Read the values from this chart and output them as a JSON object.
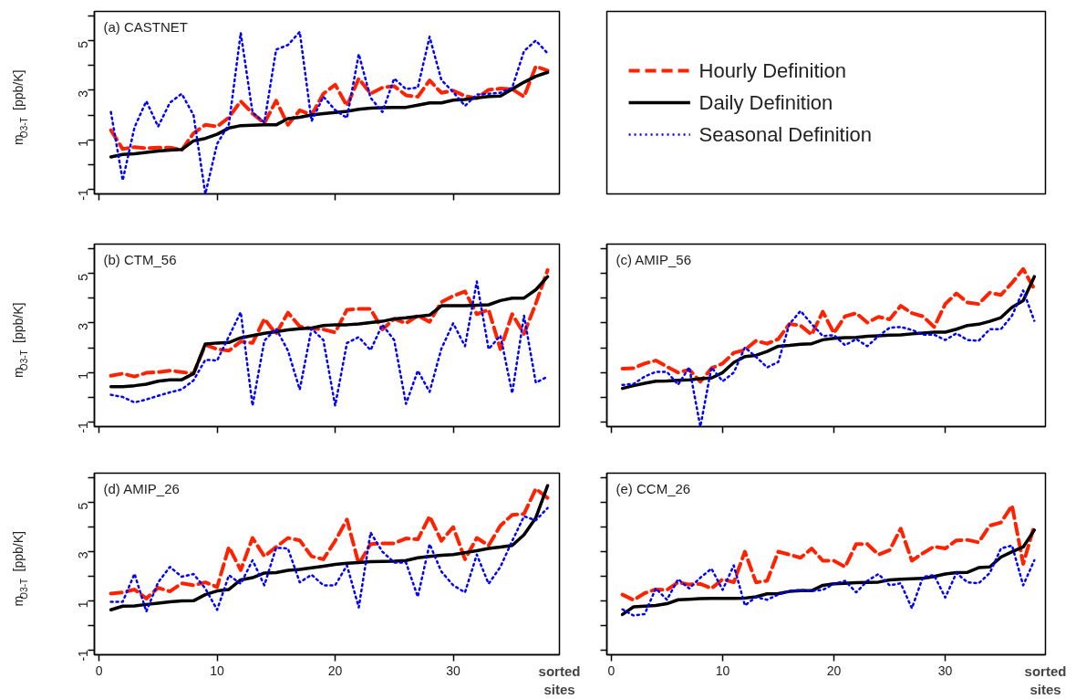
{
  "chart_data": [
    {
      "type": "line",
      "title": "(a) CASTNET",
      "ylabel": "m$_{O3-T}$ [ppb/K]",
      "xlim": [
        -0.4,
        39.0
      ],
      "ylim": [
        -1.2,
        6.2
      ],
      "xticks": [
        0,
        10,
        20,
        30
      ],
      "yticks": [
        -1,
        {
          "value": 0,
          "label": null
        },
        1,
        {
          "value": 2,
          "label": null
        },
        3,
        {
          "value": 4,
          "label": null
        },
        5,
        {
          "value": 6,
          "label": null
        }
      ],
      "tick_labels": "y",
      "grid": false,
      "legend": "right",
      "marker": "none",
      "x": [
        1,
        2,
        3,
        4,
        5,
        6,
        7,
        8,
        9,
        10,
        11,
        12,
        13,
        14,
        15,
        16,
        17,
        18,
        19,
        20,
        21,
        22,
        23,
        24,
        25,
        26,
        27,
        28,
        29,
        30,
        31,
        32,
        33,
        34,
        35,
        36,
        37,
        38
      ],
      "series": [
        {
          "name": "Hourly Definition",
          "color": "#ff2200",
          "line_style": "dashed",
          "values": [
            1.38,
            0.62,
            0.7,
            0.65,
            0.68,
            0.68,
            0.58,
            1.26,
            1.6,
            1.53,
            1.9,
            2.56,
            2.06,
            1.67,
            2.58,
            1.6,
            2.19,
            2.0,
            2.86,
            3.23,
            2.37,
            3.48,
            2.86,
            3.11,
            3.17,
            2.8,
            2.74,
            3.4,
            2.9,
            2.99,
            2.77,
            2.68,
            3.02,
            3.07,
            3.05,
            2.74,
            3.97,
            3.8
          ]
        },
        {
          "name": "Daily Definition",
          "color": "#000000",
          "line_style": "solid",
          "values": [
            0.3,
            0.4,
            0.43,
            0.48,
            0.54,
            0.58,
            0.6,
            0.95,
            1.05,
            1.22,
            1.47,
            1.57,
            1.58,
            1.6,
            1.6,
            1.85,
            1.91,
            2.0,
            2.06,
            2.1,
            2.15,
            2.23,
            2.28,
            2.3,
            2.31,
            2.31,
            2.4,
            2.49,
            2.49,
            2.6,
            2.63,
            2.69,
            2.75,
            2.77,
            3.05,
            3.33,
            3.57,
            3.73
          ]
        },
        {
          "name": "Seasonal Definition",
          "color": "#0000ff",
          "line_style": "dotted",
          "values": [
            2.12,
            -0.65,
            1.5,
            2.56,
            1.53,
            2.5,
            2.86,
            2.0,
            -1.2,
            0.83,
            1.63,
            5.33,
            2.1,
            1.7,
            4.65,
            4.84,
            5.37,
            1.75,
            2.74,
            2.2,
            1.88,
            4.47,
            2.7,
            2.12,
            3.48,
            3.05,
            3.11,
            5.17,
            3.42,
            2.93,
            2.37,
            2.83,
            2.86,
            2.9,
            3.11,
            4.59,
            5.02,
            4.5
          ]
        }
      ]
    },
    {
      "type": "line",
      "title": "(b) CTM_56",
      "ylabel": "m$_{O3-T}$ [ppb/K]",
      "xlim": [
        -0.4,
        39.0
      ],
      "ylim": [
        -1.2,
        6.2
      ],
      "xticks": [
        0,
        10,
        20,
        30
      ],
      "yticks": [
        -1,
        {
          "value": 0,
          "label": null
        },
        1,
        {
          "value": 2,
          "label": null
        },
        3,
        {
          "value": 4,
          "label": null
        },
        5,
        {
          "value": 6,
          "label": null
        }
      ],
      "tick_labels": "y",
      "grid": false,
      "marker": "none",
      "x": [
        1,
        2,
        3,
        4,
        5,
        6,
        7,
        8,
        9,
        10,
        11,
        12,
        13,
        14,
        15,
        16,
        17,
        18,
        19,
        20,
        21,
        22,
        23,
        24,
        25,
        26,
        27,
        28,
        29,
        30,
        31,
        32,
        33,
        34,
        35,
        36,
        37,
        38
      ],
      "series": [
        {
          "color": "#ff2200",
          "line_style": "dashed",
          "values": [
            0.86,
            0.95,
            0.83,
            0.98,
            1.01,
            1.07,
            1.01,
            0.95,
            2.12,
            1.94,
            1.88,
            2.25,
            2.19,
            3.17,
            2.56,
            3.42,
            2.86,
            2.78,
            2.74,
            2.62,
            3.54,
            3.57,
            3.57,
            2.74,
            3.17,
            2.99,
            3.3,
            3.05,
            3.85,
            4.1,
            4.28,
            3.36,
            3.54,
            1.94,
            3.36,
            2.56,
            3.79,
            5.15
          ]
        },
        {
          "color": "#000000",
          "line_style": "solid",
          "values": [
            0.42,
            0.42,
            0.46,
            0.52,
            0.64,
            0.7,
            0.7,
            0.95,
            2.15,
            2.19,
            2.21,
            2.4,
            2.49,
            2.58,
            2.65,
            2.72,
            2.77,
            2.8,
            2.9,
            2.93,
            2.93,
            2.96,
            3.02,
            3.07,
            3.17,
            3.21,
            3.27,
            3.32,
            3.7,
            3.7,
            3.7,
            3.72,
            3.74,
            3.91,
            4.01,
            4.01,
            4.35,
            4.88
          ]
        },
        {
          "color": "#0000ff",
          "line_style": "dotted",
          "values": [
            0.09,
            0,
            -0.22,
            -0.1,
            0.05,
            0.19,
            0.31,
            0.67,
            1.51,
            1.48,
            2.46,
            3.44,
            -0.35,
            2.28,
            2.77,
            1.88,
            0.3,
            2.77,
            2.31,
            -0.35,
            2.19,
            2.43,
            1.9,
            2.93,
            2.31,
            -0.28,
            1.07,
            0.21,
            1.96,
            2.99,
            2.06,
            4.68,
            1.94,
            2.49,
            0.15,
            3.3,
            0.58,
            0.83
          ]
        }
      ]
    },
    {
      "type": "line",
      "title": "(c) AMIP_56",
      "xlim": [
        -0.4,
        39.0
      ],
      "ylim": [
        -1.2,
        6.2
      ],
      "xticks": [
        0,
        10,
        20,
        30
      ],
      "yticks": [
        -1,
        {
          "value": 0,
          "label": null
        },
        1,
        {
          "value": 2,
          "label": null
        },
        3,
        {
          "value": 4,
          "label": null
        },
        5,
        {
          "value": 6,
          "label": null
        }
      ],
      "tick_labels": false,
      "grid": false,
      "marker": "none",
      "x": [
        1,
        2,
        3,
        4,
        5,
        6,
        7,
        8,
        9,
        10,
        11,
        12,
        13,
        14,
        15,
        16,
        17,
        18,
        19,
        20,
        21,
        22,
        23,
        24,
        25,
        26,
        27,
        28,
        29,
        30,
        31,
        32,
        33,
        34,
        35,
        36,
        37,
        38
      ],
      "series": [
        {
          "color": "#ff2200",
          "line_style": "dashed",
          "values": [
            1.15,
            1.17,
            1.36,
            1.48,
            1.23,
            0.99,
            1.11,
            0.62,
            1.17,
            1.36,
            1.79,
            1.91,
            2.28,
            2.16,
            2.35,
            2.96,
            2.9,
            2.53,
            3.46,
            2.59,
            3.27,
            3.4,
            3.02,
            3.25,
            3.15,
            3.7,
            3.4,
            3.27,
            2.84,
            3.77,
            4.2,
            3.83,
            3.77,
            4.23,
            4.14,
            4.63,
            5.19,
            4.38
          ]
        },
        {
          "color": "#000000",
          "line_style": "solid",
          "values": [
            0.35,
            0.46,
            0.56,
            0.64,
            0.65,
            0.68,
            0.7,
            0.74,
            0.77,
            0.99,
            1.4,
            1.64,
            1.69,
            1.85,
            2.06,
            2.09,
            2.14,
            2.16,
            2.32,
            2.38,
            2.41,
            2.42,
            2.46,
            2.48,
            2.51,
            2.52,
            2.56,
            2.59,
            2.63,
            2.63,
            2.75,
            2.9,
            2.95,
            3.07,
            3.22,
            3.64,
            3.91,
            4.88
          ]
        },
        {
          "color": "#0000ff",
          "line_style": "dotted",
          "values": [
            0.49,
            0.53,
            0.83,
            1.02,
            1.02,
            0.5,
            1.2,
            -1.2,
            1.2,
            0.64,
            0.99,
            2.01,
            1.63,
            1.2,
            1.42,
            2.96,
            3.49,
            2.96,
            2.47,
            2.51,
            2.1,
            2.35,
            2.06,
            2.47,
            2.81,
            2.84,
            2.72,
            2.53,
            2.53,
            2.31,
            2.58,
            2.31,
            2.28,
            2.75,
            2.75,
            3.3,
            4.32,
            3.09
          ]
        }
      ]
    },
    {
      "type": "line",
      "title": "(d) AMIP_26",
      "ylabel": "m$_{O3-T}$ [ppb/K]",
      "xlabel": "sorted sites",
      "xlim": [
        -0.4,
        39.0
      ],
      "ylim": [
        -1.2,
        6.2
      ],
      "xticks": [
        0,
        10,
        20,
        30
      ],
      "yticks": [
        -1,
        {
          "value": 0,
          "label": null
        },
        1,
        {
          "value": 2,
          "label": null
        },
        3,
        {
          "value": 4,
          "label": null
        },
        5,
        {
          "value": 6,
          "label": null
        }
      ],
      "grid": false,
      "marker": "none",
      "x": [
        1,
        2,
        3,
        4,
        5,
        6,
        7,
        8,
        9,
        10,
        11,
        12,
        13,
        14,
        15,
        16,
        17,
        18,
        19,
        20,
        21,
        22,
        23,
        24,
        25,
        26,
        27,
        28,
        29,
        30,
        31,
        32,
        33,
        34,
        35,
        36,
        37,
        38
      ],
      "series": [
        {
          "color": "#ff2200",
          "line_style": "dashed",
          "values": [
            1.29,
            1.34,
            1.46,
            1.09,
            1.53,
            1.38,
            1.71,
            1.63,
            1.75,
            1.56,
            3.19,
            2.25,
            3.56,
            2.81,
            3.19,
            3.56,
            3.46,
            2.81,
            2.69,
            3.44,
            4.31,
            2.5,
            3.31,
            3.34,
            3.34,
            3.54,
            3.5,
            4.44,
            3.44,
            4.0,
            2.69,
            3.56,
            3.25,
            4.06,
            4.5,
            4.54,
            5.56,
            5.19
          ]
        },
        {
          "color": "#000000",
          "line_style": "solid",
          "values": [
            0.63,
            0.78,
            0.79,
            0.85,
            0.9,
            0.96,
            0.99,
            1.0,
            1.25,
            1.4,
            1.46,
            1.85,
            1.94,
            2.13,
            2.15,
            2.24,
            2.28,
            2.34,
            2.41,
            2.48,
            2.53,
            2.56,
            2.59,
            2.6,
            2.61,
            2.64,
            2.75,
            2.81,
            2.85,
            2.88,
            2.96,
            3.04,
            3.13,
            3.19,
            3.25,
            3.69,
            4.38,
            5.69
          ]
        },
        {
          "color": "#0000ff",
          "line_style": "dotted",
          "values": [
            0.96,
            0.96,
            2.1,
            0.56,
            1.75,
            2.38,
            1.98,
            2.09,
            1.5,
            0.63,
            2.04,
            1.69,
            2.65,
            1.63,
            3.16,
            3.13,
            1.75,
            2.06,
            1.63,
            1.63,
            2.44,
            0.73,
            3.78,
            3.0,
            2.56,
            2.56,
            1.16,
            3.31,
            2.19,
            1.63,
            1.34,
            2.88,
            1.69,
            2.38,
            3.44,
            4.44,
            4.28,
            4.78
          ]
        }
      ]
    },
    {
      "type": "line",
      "title": "(e) CCM_26",
      "xlabel": "sorted sites",
      "xlim": [
        -0.4,
        39.0
      ],
      "ylim": [
        -1.2,
        6.2
      ],
      "xticks": [
        0,
        10,
        20,
        30
      ],
      "yticks": [
        -1,
        {
          "value": 0,
          "label": null
        },
        1,
        {
          "value": 2,
          "label": null
        },
        3,
        {
          "value": 4,
          "label": null
        },
        5,
        {
          "value": 6,
          "label": null
        }
      ],
      "tick_labels": "x",
      "grid": false,
      "marker": "none",
      "x": [
        1,
        2,
        3,
        4,
        5,
        6,
        7,
        8,
        9,
        10,
        11,
        12,
        13,
        14,
        15,
        16,
        17,
        18,
        19,
        20,
        21,
        22,
        23,
        24,
        25,
        26,
        27,
        28,
        29,
        30,
        31,
        32,
        33,
        34,
        35,
        36,
        37,
        38
      ],
      "series": [
        {
          "color": "#ff2200",
          "line_style": "dashed",
          "values": [
            1.25,
            1.03,
            1.31,
            1.46,
            1.44,
            1.75,
            1.66,
            1.69,
            1.5,
            1.88,
            1.75,
            3.0,
            1.75,
            1.81,
            3.0,
            2.88,
            2.75,
            3.13,
            2.63,
            2.63,
            2.38,
            3.31,
            3.31,
            2.88,
            3.06,
            3.94,
            2.63,
            2.94,
            3.21,
            3.13,
            3.46,
            3.48,
            3.38,
            4.06,
            4.19,
            4.88,
            2.5,
            4.06
          ]
        },
        {
          "color": "#000000",
          "line_style": "solid",
          "values": [
            0.44,
            0.75,
            0.78,
            0.81,
            0.88,
            1.04,
            1.06,
            1.09,
            1.1,
            1.1,
            1.1,
            1.11,
            1.16,
            1.28,
            1.29,
            1.38,
            1.41,
            1.41,
            1.63,
            1.69,
            1.71,
            1.74,
            1.75,
            1.76,
            1.85,
            1.88,
            1.9,
            1.91,
            1.99,
            2.09,
            2.15,
            2.16,
            2.35,
            2.38,
            2.78,
            3.0,
            3.19,
            3.88
          ]
        },
        {
          "color": "#0000ff",
          "line_style": "dotted",
          "values": [
            0.65,
            0.4,
            0.46,
            1.5,
            1.04,
            1.88,
            1.5,
            1.94,
            2.31,
            1.44,
            2.44,
            0.81,
            1.15,
            1.04,
            1.25,
            1.4,
            1.44,
            1.4,
            1.44,
            1.69,
            1.81,
            1.34,
            1.81,
            2.09,
            1.63,
            1.71,
            0.69,
            1.98,
            2.04,
            1.13,
            2.13,
            1.75,
            1.71,
            2.13,
            3.13,
            3.25,
            1.63,
            2.65
          ]
        }
      ]
    }
  ]
}
